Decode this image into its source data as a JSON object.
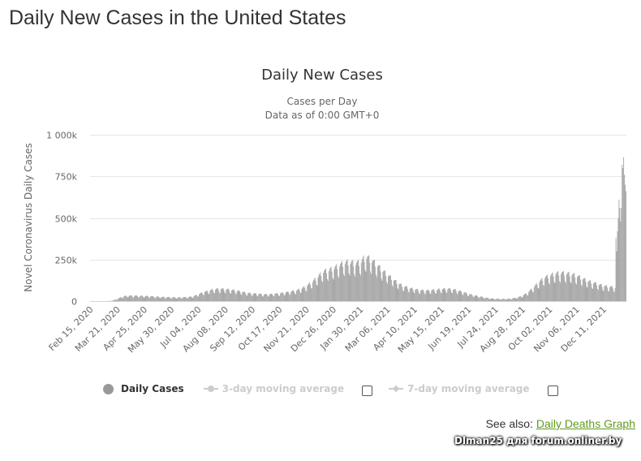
{
  "page": {
    "title": "Daily New Cases in the United States"
  },
  "see_also": {
    "prefix": "See also:",
    "link_label": "Daily Deaths Graph"
  },
  "watermark": "Dlman25 для forum.onliner.by",
  "legend": {
    "items": [
      {
        "label": "Daily Cases",
        "active": true,
        "icon": "circle-marker-icon"
      },
      {
        "label": "3-day moving average",
        "active": false,
        "icon": "line-circle-marker-icon",
        "checked": false
      },
      {
        "label": "7-day moving average",
        "active": false,
        "icon": "line-diamond-marker-icon",
        "checked": false
      }
    ]
  },
  "colors": {
    "bar": "#a0a0a0",
    "link": "#5f9b1e",
    "legend_inactive": "#cccccc"
  },
  "chart_data": {
    "type": "bar",
    "title": "Daily New Cases",
    "subtitle_lines": [
      "Cases per Day",
      "Data as of 0:00 GMT+0"
    ],
    "xlabel": "",
    "ylabel": "Novel Coronavirus Daily Cases",
    "ylim": [
      0,
      1000000
    ],
    "y_ticks": [
      {
        "value": 0,
        "label": "0"
      },
      {
        "value": 250000,
        "label": "250k"
      },
      {
        "value": 500000,
        "label": "500k"
      },
      {
        "value": 750000,
        "label": "750k"
      },
      {
        "value": 1000000,
        "label": "1 000k"
      }
    ],
    "grid": true,
    "legend_position": "bottom",
    "x_start": "2020-02-15",
    "x_end": "2022-01-09",
    "x_tick_labels": [
      "Feb 15, 2020",
      "Mar 21, 2020",
      "Apr 25, 2020",
      "May 30, 2020",
      "Jul 04, 2020",
      "Aug 08, 2020",
      "Sep 12, 2020",
      "Oct 17, 2020",
      "Nov 21, 2020",
      "Dec 26, 2020",
      "Jan 30, 2021",
      "Mar 06, 2021",
      "Apr 10, 2021",
      "May 15, 2021",
      "Jun 19, 2021",
      "Jul 24, 2021",
      "Aug 28, 2021",
      "Oct 02, 2021",
      "Nov 06, 2021",
      "Dec 11, 2021"
    ],
    "x_tick_interval_days": 35,
    "series": [
      {
        "name": "Daily Cases",
        "weekly_average_values": [
          0,
          0,
          0,
          0,
          2000,
          12000,
          26000,
          30000,
          30000,
          29000,
          28000,
          27000,
          25000,
          23000,
          22000,
          21000,
          20000,
          21000,
          22000,
          26000,
          38000,
          50000,
          58000,
          66000,
          67000,
          66000,
          62000,
          58000,
          52000,
          45000,
          42000,
          40000,
          38000,
          37000,
          40000,
          43000,
          47000,
          52000,
          58000,
          68000,
          82000,
          105000,
          130000,
          160000,
          170000,
          180000,
          195000,
          210000,
          215000,
          205000,
          215000,
          245000,
          225000,
          200000,
          170000,
          145000,
          120000,
          98000,
          82000,
          72000,
          66000,
          60000,
          58000,
          60000,
          62000,
          66000,
          68000,
          66000,
          58000,
          50000,
          40000,
          32000,
          26000,
          20000,
          15000,
          13000,
          12000,
          12000,
          14000,
          20000,
          30000,
          48000,
          75000,
          105000,
          128000,
          140000,
          150000,
          155000,
          152000,
          148000,
          140000,
          125000,
          112000,
          102000,
          92000,
          84000,
          80000,
          75000,
          74000,
          78000,
          85000,
          90000,
          88000,
          100000,
          118000,
          125000,
          135000,
          185000,
          300000,
          520000,
          700000,
          780000
        ],
        "peak_value": 865000,
        "values_note": "weekly averages estimated from bar heights; daily bars oscillate around these with weekend dips"
      }
    ]
  }
}
